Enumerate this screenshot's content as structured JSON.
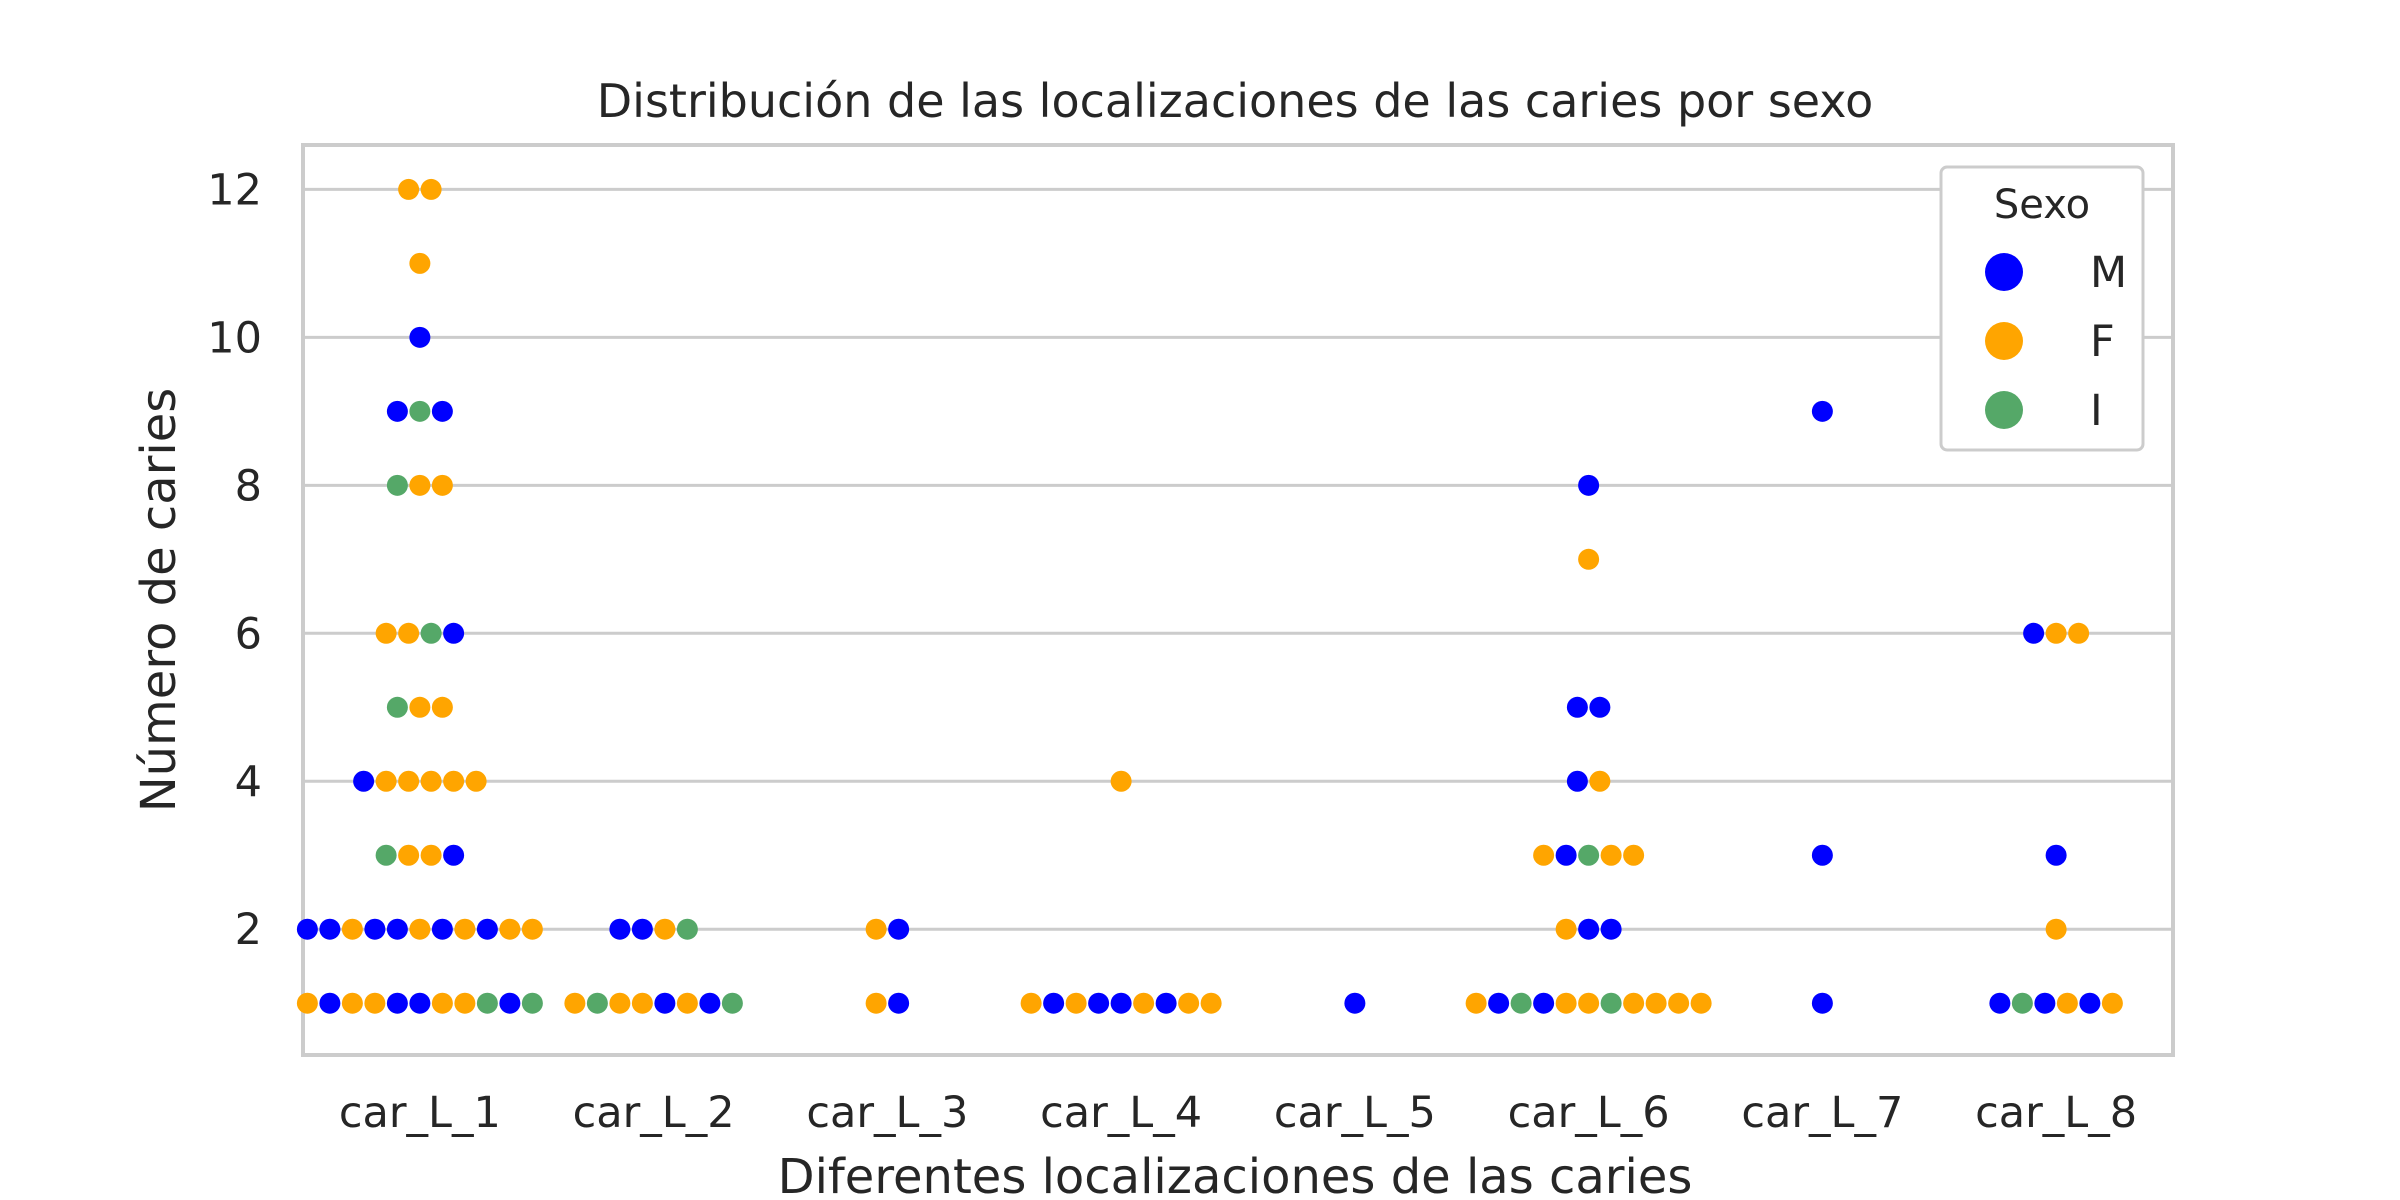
{
  "chart_data": {
    "type": "scatter",
    "subtype": "swarm",
    "title": "Distribución de las localizaciones de las caries por sexo",
    "xlabel": "Diferentes localizaciones de las caries",
    "ylabel": "Número de caries",
    "categories": [
      "car_L_1",
      "car_L_2",
      "car_L_3",
      "car_L_4",
      "car_L_5",
      "car_L_6",
      "car_L_7",
      "car_L_8"
    ],
    "yticks": [
      "2",
      "4",
      "6",
      "8",
      "10",
      "12"
    ],
    "ylim": [
      0.3,
      12.6
    ],
    "grid": "horizontal",
    "legend": {
      "title": "Sexo",
      "placement": "top-right",
      "entries": [
        {
          "label": "M",
          "color": "#0000ff"
        },
        {
          "label": "F",
          "color": "#ffa500"
        },
        {
          "label": "I",
          "color": "#55a868"
        }
      ]
    },
    "columns": [
      {
        "category": "car_L_1",
        "points": [
          {
            "y": 12,
            "s": [
              "F",
              "F"
            ]
          },
          {
            "y": 11,
            "s": [
              "F"
            ]
          },
          {
            "y": 10,
            "s": [
              "M"
            ]
          },
          {
            "y": 9,
            "s": [
              "M",
              "I",
              "M"
            ]
          },
          {
            "y": 8,
            "s": [
              "I",
              "F",
              "F"
            ]
          },
          {
            "y": 6,
            "s": [
              "F",
              "F",
              "I",
              "M"
            ]
          },
          {
            "y": 5,
            "s": [
              "I",
              "F",
              "F"
            ]
          },
          {
            "y": 4,
            "s": [
              "M",
              "F",
              "F",
              "F",
              "F",
              "F"
            ]
          },
          {
            "y": 3,
            "s": [
              "I",
              "F",
              "F",
              "M"
            ]
          },
          {
            "y": 2,
            "s": [
              "M",
              "M",
              "F",
              "M",
              "M",
              "F",
              "M",
              "F",
              "M",
              "F",
              "F"
            ]
          },
          {
            "y": 1,
            "s": [
              "F",
              "M",
              "F",
              "F",
              "M",
              "M",
              "F",
              "F",
              "I",
              "M",
              "I"
            ]
          }
        ]
      },
      {
        "category": "car_L_2",
        "points": [
          {
            "y": 2,
            "s": [
              "M",
              "M",
              "F",
              "I"
            ]
          },
          {
            "y": 1,
            "s": [
              "F",
              "I",
              "F",
              "F",
              "M",
              "F",
              "M",
              "I"
            ]
          }
        ]
      },
      {
        "category": "car_L_3",
        "points": [
          {
            "y": 2,
            "s": [
              "F",
              "M"
            ]
          },
          {
            "y": 1,
            "s": [
              "F",
              "M"
            ]
          }
        ]
      },
      {
        "category": "car_L_4",
        "points": [
          {
            "y": 4,
            "s": [
              "F"
            ]
          },
          {
            "y": 1,
            "s": [
              "F",
              "M",
              "F",
              "M",
              "M",
              "F",
              "M",
              "F",
              "F"
            ]
          }
        ]
      },
      {
        "category": "car_L_5",
        "points": [
          {
            "y": 1,
            "s": [
              "M"
            ]
          }
        ]
      },
      {
        "category": "car_L_6",
        "points": [
          {
            "y": 8,
            "s": [
              "M"
            ]
          },
          {
            "y": 7,
            "s": [
              "F"
            ]
          },
          {
            "y": 5,
            "s": [
              "M",
              "M"
            ]
          },
          {
            "y": 4,
            "s": [
              "M",
              "F"
            ]
          },
          {
            "y": 3,
            "s": [
              "F",
              "M",
              "I",
              "F",
              "F"
            ]
          },
          {
            "y": 2,
            "s": [
              "F",
              "M",
              "M"
            ]
          },
          {
            "y": 1,
            "s": [
              "F",
              "M",
              "I",
              "M",
              "F",
              "F",
              "I",
              "F",
              "F",
              "F",
              "F"
            ]
          }
        ]
      },
      {
        "category": "car_L_7",
        "points": [
          {
            "y": 9,
            "s": [
              "M"
            ]
          },
          {
            "y": 3,
            "s": [
              "M"
            ]
          },
          {
            "y": 1,
            "s": [
              "M"
            ]
          }
        ]
      },
      {
        "category": "car_L_8",
        "points": [
          {
            "y": 6,
            "s": [
              "M",
              "F",
              "F"
            ]
          },
          {
            "y": 3,
            "s": [
              "M"
            ]
          },
          {
            "y": 2,
            "s": [
              "F"
            ]
          },
          {
            "y": 1,
            "s": [
              "M",
              "I",
              "M",
              "F",
              "M",
              "F"
            ]
          }
        ]
      }
    ]
  }
}
